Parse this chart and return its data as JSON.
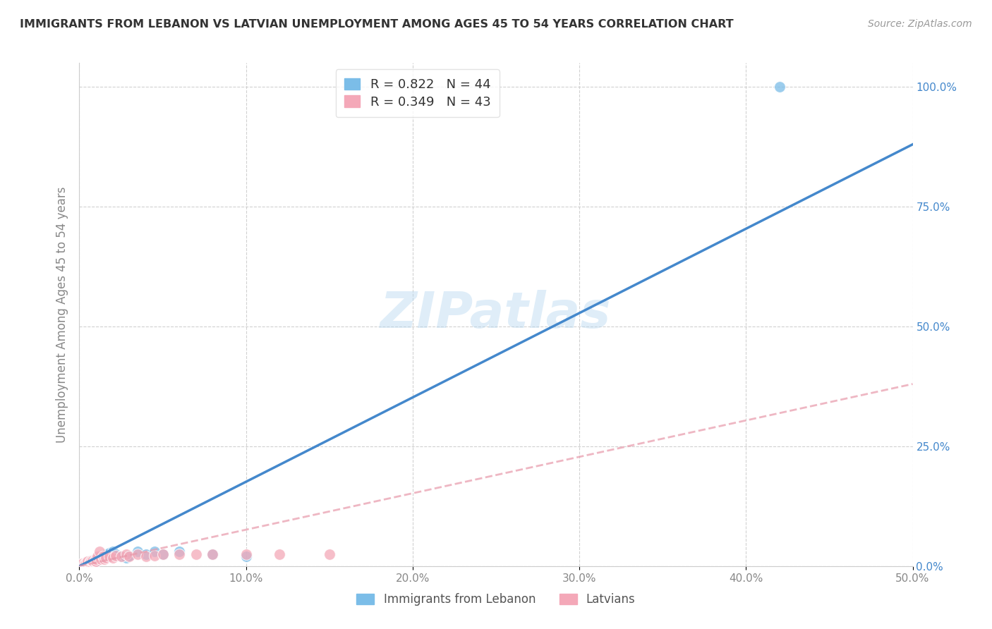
{
  "title": "IMMIGRANTS FROM LEBANON VS LATVIAN UNEMPLOYMENT AMONG AGES 45 TO 54 YEARS CORRELATION CHART",
  "source": "Source: ZipAtlas.com",
  "xlabel": "",
  "ylabel": "Unemployment Among Ages 45 to 54 years",
  "xlim": [
    0,
    0.5
  ],
  "ylim": [
    0,
    1.05
  ],
  "xticks": [
    0.0,
    0.1,
    0.2,
    0.3,
    0.4,
    0.5
  ],
  "yticks": [
    0.0,
    0.25,
    0.5,
    0.75,
    1.0
  ],
  "xtick_labels": [
    "0.0%",
    "10.0%",
    "20.0%",
    "30.0%",
    "40.0%",
    "50.0%"
  ],
  "ytick_labels": [
    "0.0%",
    "25.0%",
    "50.0%",
    "75.0%",
    "100.0%"
  ],
  "legend1_label": "R = 0.822   N = 44",
  "legend2_label": "R = 0.349   N = 43",
  "legend_bottom_label1": "Immigrants from Lebanon",
  "legend_bottom_label2": "Latvians",
  "blue_color": "#7BBDE8",
  "pink_color": "#F4A8B8",
  "trend_blue": "#4488CC",
  "trend_pink": "#E899AA",
  "watermark": "ZIPatlas",
  "blue_scatter_x": [
    0.001,
    0.001,
    0.002,
    0.002,
    0.002,
    0.003,
    0.003,
    0.003,
    0.004,
    0.004,
    0.004,
    0.005,
    0.005,
    0.005,
    0.006,
    0.006,
    0.007,
    0.007,
    0.007,
    0.008,
    0.008,
    0.009,
    0.009,
    0.01,
    0.01,
    0.011,
    0.012,
    0.013,
    0.015,
    0.016,
    0.018,
    0.02,
    0.022,
    0.025,
    0.028,
    0.03,
    0.035,
    0.04,
    0.045,
    0.05,
    0.06,
    0.08,
    0.1,
    0.42
  ],
  "blue_scatter_y": [
    0.001,
    0.003,
    0.002,
    0.004,
    0.005,
    0.003,
    0.005,
    0.007,
    0.004,
    0.006,
    0.008,
    0.005,
    0.007,
    0.009,
    0.006,
    0.008,
    0.007,
    0.009,
    0.011,
    0.008,
    0.01,
    0.009,
    0.012,
    0.01,
    0.014,
    0.015,
    0.018,
    0.02,
    0.022,
    0.025,
    0.028,
    0.03,
    0.025,
    0.02,
    0.018,
    0.022,
    0.03,
    0.025,
    0.03,
    0.025,
    0.03,
    0.025,
    0.02,
    1.0
  ],
  "pink_scatter_x": [
    0.001,
    0.001,
    0.002,
    0.002,
    0.002,
    0.003,
    0.003,
    0.004,
    0.004,
    0.005,
    0.005,
    0.005,
    0.006,
    0.006,
    0.007,
    0.007,
    0.008,
    0.008,
    0.009,
    0.01,
    0.01,
    0.011,
    0.012,
    0.013,
    0.014,
    0.015,
    0.016,
    0.018,
    0.02,
    0.022,
    0.025,
    0.028,
    0.03,
    0.035,
    0.04,
    0.045,
    0.05,
    0.06,
    0.07,
    0.08,
    0.1,
    0.12,
    0.15
  ],
  "pink_scatter_y": [
    0.002,
    0.004,
    0.003,
    0.005,
    0.006,
    0.004,
    0.006,
    0.005,
    0.007,
    0.006,
    0.008,
    0.01,
    0.007,
    0.009,
    0.008,
    0.011,
    0.01,
    0.012,
    0.011,
    0.01,
    0.015,
    0.02,
    0.03,
    0.015,
    0.02,
    0.015,
    0.018,
    0.02,
    0.018,
    0.022,
    0.02,
    0.025,
    0.02,
    0.025,
    0.02,
    0.022,
    0.025,
    0.025,
    0.025,
    0.025,
    0.025,
    0.025,
    0.025
  ],
  "blue_trend_x": [
    0.0,
    0.5
  ],
  "blue_trend_y": [
    0.0,
    0.88
  ],
  "pink_trend_x": [
    0.0,
    0.5
  ],
  "pink_trend_y": [
    0.0,
    0.38
  ]
}
